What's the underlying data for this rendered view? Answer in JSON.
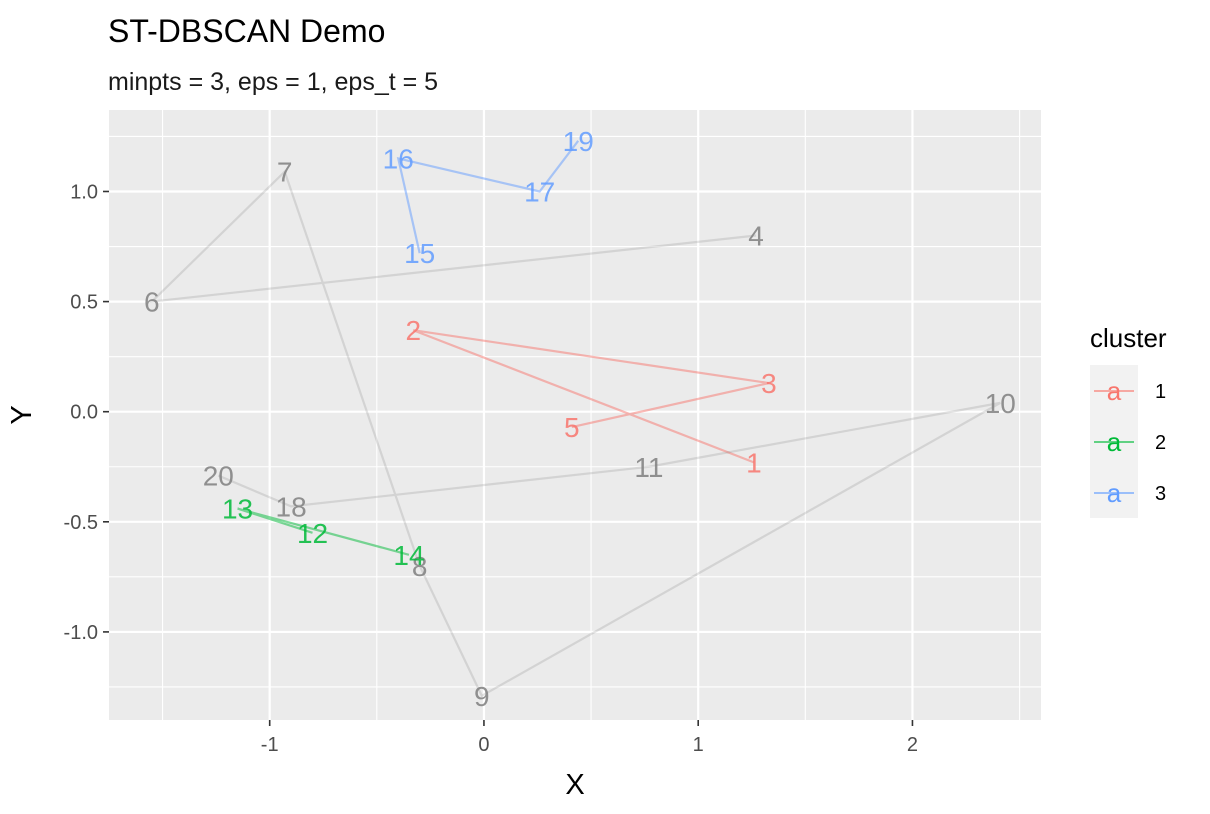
{
  "chart_data": {
    "type": "scatter",
    "title": "ST-DBSCAN Demo",
    "subtitle": "minpts = 3, eps = 1, eps_t = 5",
    "xlabel": "X",
    "ylabel": "Y",
    "xlim": [
      -1.75,
      2.6
    ],
    "ylim": [
      -1.4,
      1.37
    ],
    "x_ticks": [
      -1,
      0,
      1,
      2
    ],
    "x_tick_labels": [
      "-1",
      "0",
      "1",
      "2"
    ],
    "y_ticks": [
      -1.0,
      -0.5,
      0.0,
      0.5,
      1.0
    ],
    "y_tick_labels": [
      "-1.0",
      "-0.5",
      "0.0",
      "0.5",
      "1.0"
    ],
    "grid": true,
    "legend": {
      "title": "cluster",
      "placement": "right",
      "glyph": "a",
      "entries": [
        {
          "label": "1",
          "color": "#F8766D"
        },
        {
          "label": "2",
          "color": "#00BA38"
        },
        {
          "label": "3",
          "color": "#619CFF"
        }
      ]
    },
    "noise_color": "#7F7F7F",
    "points": [
      {
        "label": "1",
        "x": 1.26,
        "y": -0.23,
        "cluster": "1"
      },
      {
        "label": "2",
        "x": -0.33,
        "y": 0.37,
        "cluster": "1"
      },
      {
        "label": "3",
        "x": 1.33,
        "y": 0.13,
        "cluster": "1"
      },
      {
        "label": "4",
        "x": 1.27,
        "y": 0.8,
        "cluster": null
      },
      {
        "label": "5",
        "x": 0.41,
        "y": -0.07,
        "cluster": "1"
      },
      {
        "label": "6",
        "x": -1.55,
        "y": 0.5,
        "cluster": null
      },
      {
        "label": "7",
        "x": -0.93,
        "y": 1.09,
        "cluster": null
      },
      {
        "label": "8",
        "x": -0.3,
        "y": -0.7,
        "cluster": null
      },
      {
        "label": "9",
        "x": -0.01,
        "y": -1.29,
        "cluster": null
      },
      {
        "label": "10",
        "x": 2.41,
        "y": 0.04,
        "cluster": null
      },
      {
        "label": "11",
        "x": 0.77,
        "y": -0.25,
        "cluster": null
      },
      {
        "label": "12",
        "x": -0.8,
        "y": -0.55,
        "cluster": "2"
      },
      {
        "label": "13",
        "x": -1.15,
        "y": -0.44,
        "cluster": "2"
      },
      {
        "label": "14",
        "x": -0.35,
        "y": -0.65,
        "cluster": "2"
      },
      {
        "label": "15",
        "x": -0.3,
        "y": 0.72,
        "cluster": "3"
      },
      {
        "label": "16",
        "x": -0.4,
        "y": 1.15,
        "cluster": "3"
      },
      {
        "label": "17",
        "x": 0.26,
        "y": 1.0,
        "cluster": "3"
      },
      {
        "label": "18",
        "x": -0.9,
        "y": -0.43,
        "cluster": null
      },
      {
        "label": "19",
        "x": 0.44,
        "y": 1.23,
        "cluster": "3"
      },
      {
        "label": "20",
        "x": -1.24,
        "y": -0.29,
        "cluster": null
      }
    ],
    "paths": [
      {
        "cluster": "1",
        "order": [
          "1",
          "2",
          "3",
          "5"
        ]
      },
      {
        "cluster": "2",
        "order": [
          "12",
          "13",
          "14"
        ]
      },
      {
        "cluster": "3",
        "order": [
          "15",
          "16",
          "17",
          "19"
        ]
      },
      {
        "cluster": null,
        "order": [
          "4",
          "6",
          "7",
          "8",
          "9",
          "10",
          "11",
          "18",
          "20"
        ]
      }
    ]
  }
}
